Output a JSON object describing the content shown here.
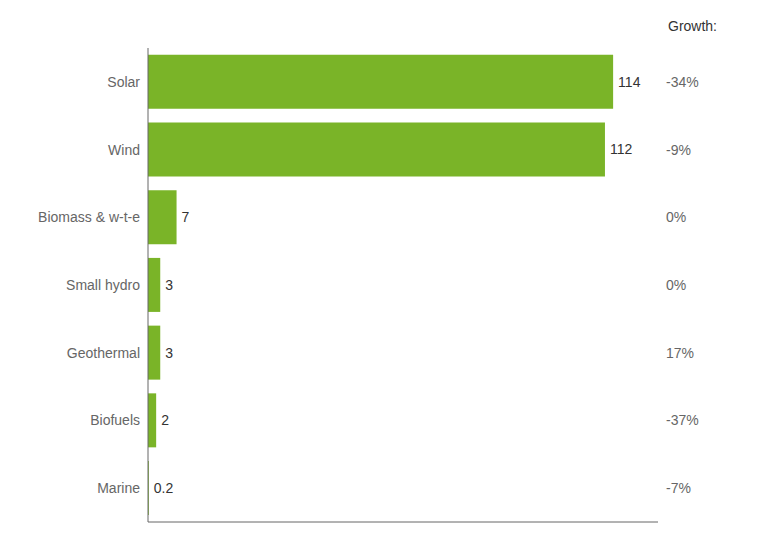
{
  "chart_data": {
    "type": "bar",
    "orientation": "horizontal",
    "categories": [
      "Marine",
      "Biofuels",
      "Geothermal",
      "Small hydro",
      "Biomass & w-t-e",
      "Wind",
      "Solar"
    ],
    "values": [
      0.2,
      2,
      3,
      3,
      7,
      112,
      114
    ],
    "value_labels": [
      "0.2",
      "2",
      "3",
      "3",
      "7",
      "112",
      "114"
    ],
    "data_labels": true,
    "color": "#7ab428",
    "xlim": [
      0,
      125
    ],
    "tick_labels": "y",
    "grid": false,
    "growth": [
      "-7%",
      "-37%",
      "17%",
      "0%",
      "0%",
      "-9%",
      "-34%"
    ],
    "growth_header": "Growth:"
  }
}
